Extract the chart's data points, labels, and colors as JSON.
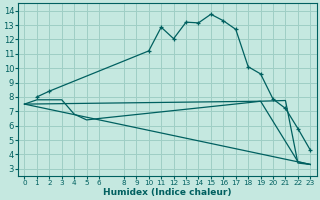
{
  "xlabel": "Humidex (Indice chaleur)",
  "bg_color": "#c5e8e0",
  "grid_color": "#9ecec5",
  "line_color": "#006060",
  "xlim": [
    -0.5,
    23.5
  ],
  "ylim": [
    2.5,
    14.5
  ],
  "xticks": [
    0,
    1,
    2,
    3,
    4,
    5,
    6,
    8,
    9,
    10,
    11,
    12,
    13,
    14,
    15,
    16,
    17,
    18,
    19,
    20,
    21,
    22,
    23
  ],
  "yticks": [
    3,
    4,
    5,
    6,
    7,
    8,
    9,
    10,
    11,
    12,
    13,
    14
  ],
  "line1_x": [
    1,
    2,
    10,
    11,
    12,
    13,
    14,
    15,
    16,
    17,
    18,
    19,
    20,
    21,
    22,
    23
  ],
  "line1_y": [
    8.0,
    8.4,
    11.2,
    12.85,
    12.05,
    13.2,
    13.15,
    13.75,
    13.3,
    12.7,
    10.1,
    9.6,
    7.85,
    7.2,
    5.8,
    4.3
  ],
  "line2_x": [
    0,
    1,
    3,
    4,
    5,
    6,
    18,
    19,
    22,
    23
  ],
  "line2_y": [
    7.5,
    7.8,
    7.8,
    6.8,
    6.4,
    6.5,
    7.6,
    7.7,
    3.5,
    3.3
  ],
  "line3_x": [
    0,
    19,
    21,
    22,
    23
  ],
  "line3_y": [
    7.5,
    7.7,
    7.75,
    3.4,
    3.3
  ],
  "line4_x": [
    0,
    23
  ],
  "line4_y": [
    7.5,
    3.3
  ],
  "xlabel_fontsize": 6.5,
  "tick_fontsize_x": 5.2,
  "tick_fontsize_y": 6.0
}
